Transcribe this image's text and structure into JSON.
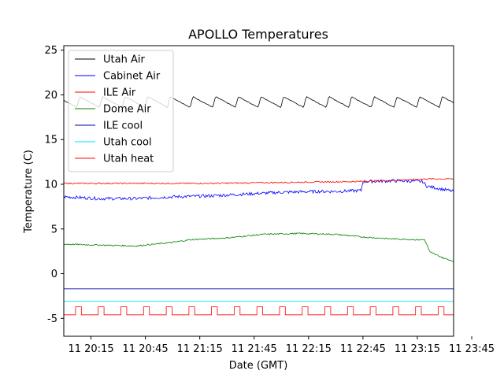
{
  "chart_data": {
    "type": "line",
    "title": "APOLLO Temperatures",
    "xlabel": "Date (GMT)",
    "ylabel": "Temperature (C)",
    "xlim": [
      0,
      215
    ],
    "ylim": [
      -7,
      25.5
    ],
    "x_unit": "minutes after 20:00 GMT",
    "x_ticks": [
      {
        "value": 15,
        "label": "11 20:15"
      },
      {
        "value": 45,
        "label": "11 20:45"
      },
      {
        "value": 75,
        "label": "11 21:15"
      },
      {
        "value": 105,
        "label": "11 21:45"
      },
      {
        "value": 135,
        "label": "11 22:15"
      },
      {
        "value": 165,
        "label": "11 22:45"
      },
      {
        "value": 195,
        "label": "11 23:15"
      },
      {
        "value": 225,
        "label": "11 23:45"
      }
    ],
    "y_ticks": [
      -5,
      0,
      5,
      10,
      15,
      20,
      25
    ],
    "legend_position": "upper-left",
    "series": [
      {
        "name": "Utah Air",
        "color": "#000000",
        "style": "sawtooth",
        "base": 19.2,
        "amplitude": 0.6,
        "period": 12.5,
        "start": 19.7
      },
      {
        "name": "Cabinet Air",
        "color": "#0000ff",
        "points": [
          [
            0,
            8.6
          ],
          [
            20,
            8.4
          ],
          [
            40,
            8.4
          ],
          [
            60,
            8.6
          ],
          [
            80,
            8.7
          ],
          [
            100,
            8.9
          ],
          [
            120,
            9.1
          ],
          [
            140,
            9.2
          ],
          [
            150,
            9.2
          ],
          [
            164,
            9.3
          ],
          [
            165,
            10.3
          ],
          [
            185,
            10.4
          ],
          [
            198,
            10.3
          ],
          [
            200,
            9.8
          ],
          [
            205,
            9.6
          ],
          [
            215,
            9.2
          ]
        ]
      },
      {
        "name": "ILE Air",
        "color": "#ff0000",
        "points": [
          [
            0,
            10.1
          ],
          [
            40,
            10.1
          ],
          [
            80,
            10.1
          ],
          [
            120,
            10.2
          ],
          [
            160,
            10.3
          ],
          [
            190,
            10.5
          ],
          [
            200,
            10.6
          ],
          [
            215,
            10.6
          ]
        ]
      },
      {
        "name": "Dome Air",
        "color": "#008000",
        "points": [
          [
            0,
            3.3
          ],
          [
            20,
            3.2
          ],
          [
            40,
            3.1
          ],
          [
            60,
            3.5
          ],
          [
            70,
            3.8
          ],
          [
            90,
            4.0
          ],
          [
            110,
            4.4
          ],
          [
            130,
            4.5
          ],
          [
            150,
            4.4
          ],
          [
            165,
            4.1
          ],
          [
            180,
            3.9
          ],
          [
            195,
            3.8
          ],
          [
            199,
            3.8
          ],
          [
            202,
            2.4
          ],
          [
            210,
            1.7
          ],
          [
            215,
            1.4
          ]
        ]
      },
      {
        "name": "ILE cool",
        "color": "#0000aa",
        "points": [
          [
            0,
            -1.7
          ],
          [
            215,
            -1.7
          ]
        ]
      },
      {
        "name": "Utah cool",
        "color": "#00e5ff",
        "points": [
          [
            0,
            -3.1
          ],
          [
            215,
            -3.1
          ]
        ]
      },
      {
        "name": "Utah heat",
        "color": "#ff0000",
        "style": "pulse",
        "low": -4.6,
        "high": -3.7,
        "period": 12.5,
        "width": 3.2,
        "start": 6.5
      }
    ]
  }
}
